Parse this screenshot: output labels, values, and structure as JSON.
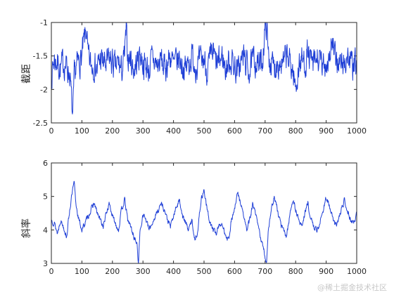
{
  "colors": {
    "series": "#1f3fd6",
    "axes": "#262626",
    "background": "#ffffff"
  },
  "watermark": "@稀土掘金技术社区",
  "chart_data": [
    {
      "type": "line",
      "ylabel": "截距",
      "xlim": [
        0,
        1000
      ],
      "ylim": [
        -2.5,
        -1
      ],
      "xticks": [
        "0",
        "100",
        "200",
        "300",
        "400",
        "500",
        "600",
        "700",
        "800",
        "900",
        "1000"
      ],
      "yticks": [
        "-1",
        "-1.5",
        "-2",
        "-2.5"
      ],
      "grid": false,
      "series": [
        {
          "x_start": 1,
          "x_step": 1,
          "anchors_x": [
            0,
            5,
            10,
            20,
            30,
            40,
            50,
            60,
            65,
            70,
            75,
            80,
            90,
            100,
            115,
            120,
            130,
            140,
            150,
            160,
            170,
            180,
            190,
            200,
            210,
            220,
            230,
            240,
            245,
            250,
            260,
            270,
            280,
            290,
            300,
            310,
            320,
            330,
            340,
            350,
            360,
            370,
            380,
            390,
            400,
            410,
            420,
            430,
            440,
            450,
            460,
            470,
            480,
            490,
            500,
            510,
            520,
            530,
            540,
            550,
            560,
            570,
            580,
            590,
            600,
            610,
            620,
            630,
            640,
            650,
            660,
            670,
            680,
            690,
            700,
            705,
            710,
            720,
            730,
            740,
            750,
            760,
            770,
            780,
            790,
            800,
            810,
            820,
            830,
            840,
            850,
            860,
            870,
            880,
            890,
            900,
            910,
            920,
            930,
            940,
            950,
            960,
            970,
            980,
            990,
            1000
          ],
          "anchors_y": [
            -1.8,
            -1.65,
            -1.55,
            -1.6,
            -1.7,
            -1.6,
            -1.65,
            -1.75,
            -2.1,
            -2.5,
            -1.85,
            -1.7,
            -1.6,
            -1.5,
            -1.1,
            -1.55,
            -1.65,
            -1.6,
            -1.7,
            -1.55,
            -1.6,
            -1.65,
            -1.55,
            -1.6,
            -1.7,
            -1.6,
            -1.75,
            -1.5,
            -1.15,
            -1.5,
            -1.55,
            -1.7,
            -1.6,
            -1.45,
            -1.6,
            -1.65,
            -1.7,
            -1.55,
            -1.6,
            -1.65,
            -1.55,
            -1.7,
            -1.6,
            -1.5,
            -1.65,
            -1.6,
            -1.55,
            -1.65,
            -1.7,
            -1.6,
            -1.5,
            -1.6,
            -1.65,
            -1.6,
            -1.55,
            -1.7,
            -1.6,
            -1.45,
            -1.65,
            -1.6,
            -1.5,
            -1.7,
            -1.6,
            -1.55,
            -1.65,
            -1.75,
            -1.6,
            -1.5,
            -1.65,
            -1.7,
            -1.6,
            -1.55,
            -1.65,
            -1.6,
            -1.1,
            -1.0,
            -1.5,
            -1.6,
            -1.7,
            -1.55,
            -1.6,
            -1.65,
            -1.5,
            -1.6,
            -1.7,
            -2.0,
            -1.65,
            -1.55,
            -1.6,
            -1.45,
            -1.6,
            -1.65,
            -1.55,
            -1.6,
            -1.7,
            -1.6,
            -1.5,
            -1.3,
            -1.6,
            -1.55,
            -1.65,
            -1.6,
            -1.5,
            -1.6,
            -1.7,
            -1.6
          ],
          "noise_amplitude": 0.18,
          "noise_seed": 7
        }
      ]
    },
    {
      "type": "line",
      "ylabel": "斜率",
      "xlim": [
        0,
        1000
      ],
      "ylim": [
        3,
        6
      ],
      "xticks": [
        "0",
        "100",
        "200",
        "300",
        "400",
        "500",
        "600",
        "700",
        "800",
        "900",
        "1000"
      ],
      "yticks": [
        "6",
        "5",
        "4",
        "3"
      ],
      "grid": false,
      "series": [
        {
          "x_start": 1,
          "x_step": 1,
          "anchors_x": [
            0,
            10,
            20,
            30,
            40,
            50,
            60,
            70,
            75,
            80,
            90,
            100,
            110,
            120,
            130,
            140,
            150,
            160,
            170,
            180,
            190,
            200,
            210,
            220,
            230,
            240,
            250,
            260,
            270,
            280,
            285,
            290,
            300,
            310,
            320,
            330,
            340,
            350,
            360,
            370,
            380,
            390,
            400,
            410,
            420,
            430,
            440,
            450,
            460,
            470,
            480,
            490,
            500,
            510,
            520,
            530,
            540,
            550,
            560,
            570,
            580,
            590,
            600,
            610,
            620,
            630,
            640,
            650,
            660,
            670,
            680,
            690,
            700,
            705,
            710,
            720,
            730,
            740,
            750,
            760,
            770,
            780,
            790,
            800,
            810,
            820,
            830,
            840,
            850,
            860,
            870,
            880,
            890,
            900,
            910,
            920,
            930,
            940,
            950,
            960,
            970,
            980,
            990,
            1000
          ],
          "anchors_y": [
            4.3,
            4.2,
            3.9,
            4.3,
            4.1,
            3.8,
            4.6,
            5.2,
            5.4,
            4.8,
            4.3,
            4.0,
            4.2,
            4.4,
            4.6,
            4.8,
            4.5,
            4.3,
            4.1,
            4.5,
            4.8,
            4.4,
            4.2,
            4.0,
            4.6,
            4.9,
            4.3,
            4.1,
            3.8,
            3.6,
            3.0,
            3.9,
            4.5,
            4.3,
            4.0,
            4.2,
            4.4,
            4.6,
            4.8,
            4.6,
            4.3,
            4.1,
            4.4,
            4.7,
            4.9,
            4.4,
            4.2,
            4.0,
            4.3,
            3.7,
            4.0,
            4.9,
            5.2,
            4.6,
            4.2,
            4.0,
            3.9,
            4.2,
            4.1,
            3.9,
            3.7,
            4.3,
            4.6,
            5.1,
            4.8,
            4.4,
            4.0,
            4.3,
            4.8,
            4.4,
            4.0,
            3.6,
            3.2,
            3.0,
            4.0,
            4.6,
            5.0,
            4.6,
            4.2,
            4.0,
            3.8,
            4.4,
            4.9,
            4.6,
            4.3,
            4.1,
            4.5,
            4.8,
            4.3,
            4.1,
            4.0,
            4.2,
            4.6,
            5.0,
            4.7,
            4.4,
            4.1,
            4.3,
            4.6,
            4.9,
            4.6,
            4.3,
            4.2,
            4.5
          ],
          "noise_amplitude": 0.07,
          "noise_seed": 13
        }
      ]
    }
  ]
}
